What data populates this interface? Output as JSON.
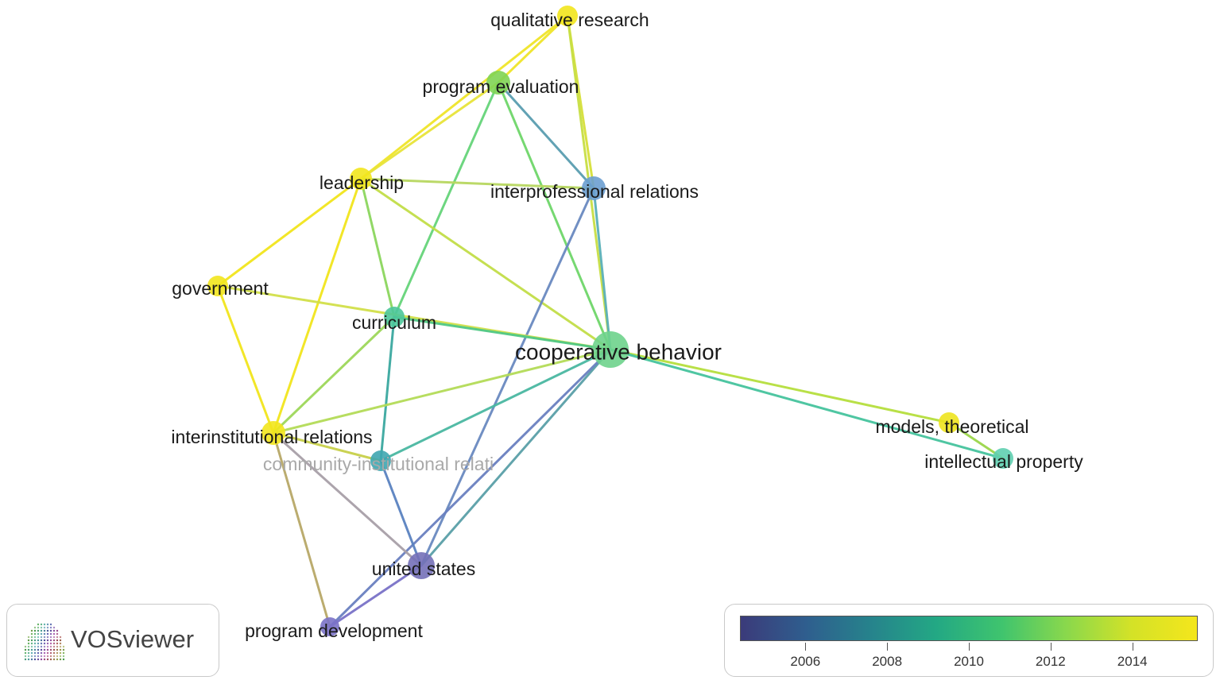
{
  "app": {
    "logo_text": "VOSviewer"
  },
  "legend": {
    "min_year": 2004.4,
    "max_year": 2015.6,
    "gradient_colors": [
      "#3b3b7a",
      "#2f5e8e",
      "#26838c",
      "#23a884",
      "#3fc46e",
      "#8ad84c",
      "#d4e227",
      "#f4e61c"
    ],
    "ticks": [
      {
        "label": "2006",
        "value": 2006
      },
      {
        "label": "2008",
        "value": 2008
      },
      {
        "label": "2010",
        "value": 2010
      },
      {
        "label": "2012",
        "value": 2012
      },
      {
        "label": "2014",
        "value": 2014
      }
    ]
  },
  "network": {
    "nodes": [
      {
        "id": "qualitative_research",
        "label": "qualitative research",
        "color": "#f2e51d",
        "faded": false
      },
      {
        "id": "program_evaluation",
        "label": "program evaluation",
        "color": "#80d454",
        "faded": false
      },
      {
        "id": "leadership",
        "label": "leadership",
        "color": "#f2e51d",
        "faded": false
      },
      {
        "id": "interprofessional_relations",
        "label": "interprofessional relations",
        "color": "#6c9ed0",
        "faded": false
      },
      {
        "id": "government",
        "label": "government",
        "color": "#f2e51d",
        "faded": false
      },
      {
        "id": "curriculum",
        "label": "curriculum",
        "color": "#4dc79a",
        "faded": false
      },
      {
        "id": "cooperative_behavior",
        "label": "cooperative behavior",
        "color": "#6ed38c",
        "faded": false
      },
      {
        "id": "interinstitutional_relations",
        "label": "interinstitutional relations",
        "color": "#f2e51d",
        "faded": false
      },
      {
        "id": "community_institutional_relations",
        "label": "community-institutional relati",
        "color": "#3fa6b0",
        "faded": true
      },
      {
        "id": "models_theoretical",
        "label": "models, theoretical",
        "color": "#eee41f",
        "faded": false
      },
      {
        "id": "intellectual_property",
        "label": "intellectual property",
        "color": "#5fcfb0",
        "faded": false
      },
      {
        "id": "united_states",
        "label": "united states",
        "color": "#7470b8",
        "faded": false
      },
      {
        "id": "program_development",
        "label": "program development",
        "color": "#7b72c8",
        "faded": false
      }
    ],
    "edges": [
      {
        "from": "qualitative_research",
        "to": "program_evaluation",
        "color": "#f0e52a"
      },
      {
        "from": "qualitative_research",
        "to": "leadership",
        "color": "#f0e52a"
      },
      {
        "from": "qualitative_research",
        "to": "interprofessional_relations",
        "color": "#d6e03a"
      },
      {
        "from": "qualitative_research",
        "to": "cooperative_behavior",
        "color": "#c8df44"
      },
      {
        "from": "program_evaluation",
        "to": "leadership",
        "color": "#e8e43a"
      },
      {
        "from": "program_evaluation",
        "to": "interprofessional_relations",
        "color": "#5a9eb0"
      },
      {
        "from": "program_evaluation",
        "to": "cooperative_behavior",
        "color": "#6fd66a"
      },
      {
        "from": "program_evaluation",
        "to": "curriculum",
        "color": "#66d47a"
      },
      {
        "from": "leadership",
        "to": "interprofessional_relations",
        "color": "#b8d860"
      },
      {
        "from": "leadership",
        "to": "government",
        "color": "#f2e51d"
      },
      {
        "from": "leadership",
        "to": "cooperative_behavior",
        "color": "#c2de48"
      },
      {
        "from": "leadership",
        "to": "curriculum",
        "color": "#8cd65e"
      },
      {
        "from": "leadership",
        "to": "interinstitutional_relations",
        "color": "#f2e51d"
      },
      {
        "from": "interprofessional_relations",
        "to": "cooperative_behavior",
        "color": "#5ab0b8"
      },
      {
        "from": "interprofessional_relations",
        "to": "united_states",
        "color": "#6a8ac0"
      },
      {
        "from": "government",
        "to": "cooperative_behavior",
        "color": "#d2e04a"
      },
      {
        "from": "government",
        "to": "interinstitutional_relations",
        "color": "#f2e51d"
      },
      {
        "from": "curriculum",
        "to": "cooperative_behavior",
        "color": "#50c884"
      },
      {
        "from": "curriculum",
        "to": "interinstitutional_relations",
        "color": "#9ed85a"
      },
      {
        "from": "curriculum",
        "to": "community_institutional_relations",
        "color": "#3aa8a0"
      },
      {
        "from": "cooperative_behavior",
        "to": "interinstitutional_relations",
        "color": "#b4dc58"
      },
      {
        "from": "cooperative_behavior",
        "to": "community_institutional_relations",
        "color": "#4ab8a2"
      },
      {
        "from": "cooperative_behavior",
        "to": "models_theoretical",
        "color": "#b6df3e"
      },
      {
        "from": "cooperative_behavior",
        "to": "intellectual_property",
        "color": "#46c39e"
      },
      {
        "from": "cooperative_behavior",
        "to": "united_states",
        "color": "#5aa0a8"
      },
      {
        "from": "cooperative_behavior",
        "to": "program_development",
        "color": "#6a80c0"
      },
      {
        "from": "models_theoretical",
        "to": "intellectual_property",
        "color": "#9bd64a"
      },
      {
        "from": "interinstitutional_relations",
        "to": "united_states",
        "color": "#a8a0a8"
      },
      {
        "from": "interinstitutional_relations",
        "to": "program_development",
        "color": "#b8a868"
      },
      {
        "from": "interinstitutional_relations",
        "to": "community_institutional_relations",
        "color": "#c8d04a"
      },
      {
        "from": "community_institutional_relations",
        "to": "united_states",
        "color": "#5a82c0"
      },
      {
        "from": "united_states",
        "to": "program_development",
        "color": "#7a72c8"
      }
    ]
  }
}
